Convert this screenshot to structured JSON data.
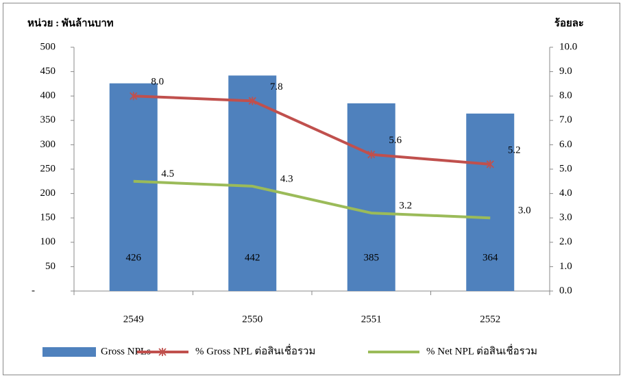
{
  "chart_data": {
    "type": "bar",
    "y_label": "หน่วย : พันล้านบาท",
    "y2_label": "ร้อยละ",
    "categories": [
      "2549",
      "2550",
      "2551",
      "2552"
    ],
    "series": [
      {
        "name": "Gross NPLs",
        "type": "bar",
        "axis": "y",
        "color": "#4f81bd",
        "values": [
          426,
          442,
          385,
          364
        ]
      },
      {
        "name": "% Gross NPL ต่อสินเชื่อรวม",
        "type": "line",
        "axis": "y2",
        "color": "#c0504d",
        "marker": "star",
        "values": [
          8.0,
          7.8,
          5.6,
          5.2
        ],
        "value_labels": [
          "8.0",
          "7.8",
          "5.6",
          "5.2"
        ]
      },
      {
        "name": "% Net NPL ต่อสินเชื่อรวม",
        "type": "line",
        "axis": "y2",
        "color": "#9bbb59",
        "values": [
          4.5,
          4.3,
          3.2,
          3.0
        ],
        "value_labels": [
          "4.5",
          "4.3",
          "3.2",
          "3.0"
        ]
      }
    ],
    "ylim": [
      0,
      500
    ],
    "yticks": [
      {
        "value": 0,
        "label": "-"
      },
      50,
      100,
      150,
      200,
      250,
      300,
      350,
      400,
      450,
      500
    ],
    "y2lim": [
      0,
      10
    ],
    "y2ticks": [
      {
        "value": 0,
        "label": "0.0"
      },
      {
        "value": 1,
        "label": "1.0"
      },
      {
        "value": 2,
        "label": "2.0"
      },
      {
        "value": 3,
        "label": "3.0"
      },
      {
        "value": 4,
        "label": "4.0"
      },
      {
        "value": 5,
        "label": "5.0"
      },
      {
        "value": 6,
        "label": "6.0"
      },
      {
        "value": 7,
        "label": "7.0"
      },
      {
        "value": 8,
        "label": "8.0"
      },
      {
        "value": 9,
        "label": "9.0"
      },
      {
        "value": 10,
        "label": "10.0"
      }
    ],
    "legend": "bottom"
  }
}
